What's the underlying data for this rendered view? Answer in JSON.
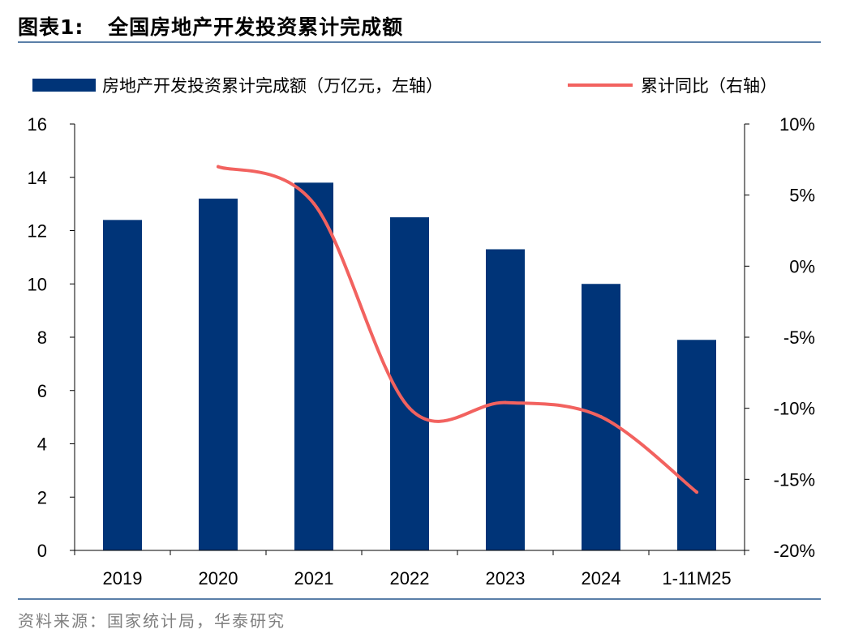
{
  "header": {
    "prefix": "图表1:",
    "title": "全国房地产开发投资累计完成额"
  },
  "footer": {
    "source": "资料来源：国家统计局，华泰研究"
  },
  "colors": {
    "bar": "#003478",
    "line": "#f2625f",
    "rule": "#5a7fa8",
    "source_text": "#7f7f7f"
  },
  "chart_data": {
    "type": "bar",
    "categories": [
      "2019",
      "2020",
      "2021",
      "2022",
      "2023",
      "2024",
      "1-11M25"
    ],
    "ylim": [
      0,
      16
    ],
    "y_ticks": [
      "0",
      "2",
      "4",
      "6",
      "8",
      "10",
      "12",
      "14",
      "16"
    ],
    "y2lim": [
      -0.2,
      0.1
    ],
    "y2_ticks": [
      "-20%",
      "-15%",
      "-10%",
      "-5%",
      "0%",
      "5%",
      "10%"
    ],
    "legend_placement": "top",
    "series": [
      {
        "name": "房地产开发投资累计完成额（万亿元，左轴）",
        "type": "bar",
        "axis": "left",
        "values": [
          12.4,
          13.2,
          13.8,
          12.5,
          11.3,
          10.0,
          7.9
        ]
      },
      {
        "name": "累计同比（右轴）",
        "type": "line",
        "axis": "right",
        "values": [
          null,
          0.07,
          0.044,
          -0.1,
          -0.096,
          -0.106,
          -0.159
        ]
      }
    ]
  }
}
